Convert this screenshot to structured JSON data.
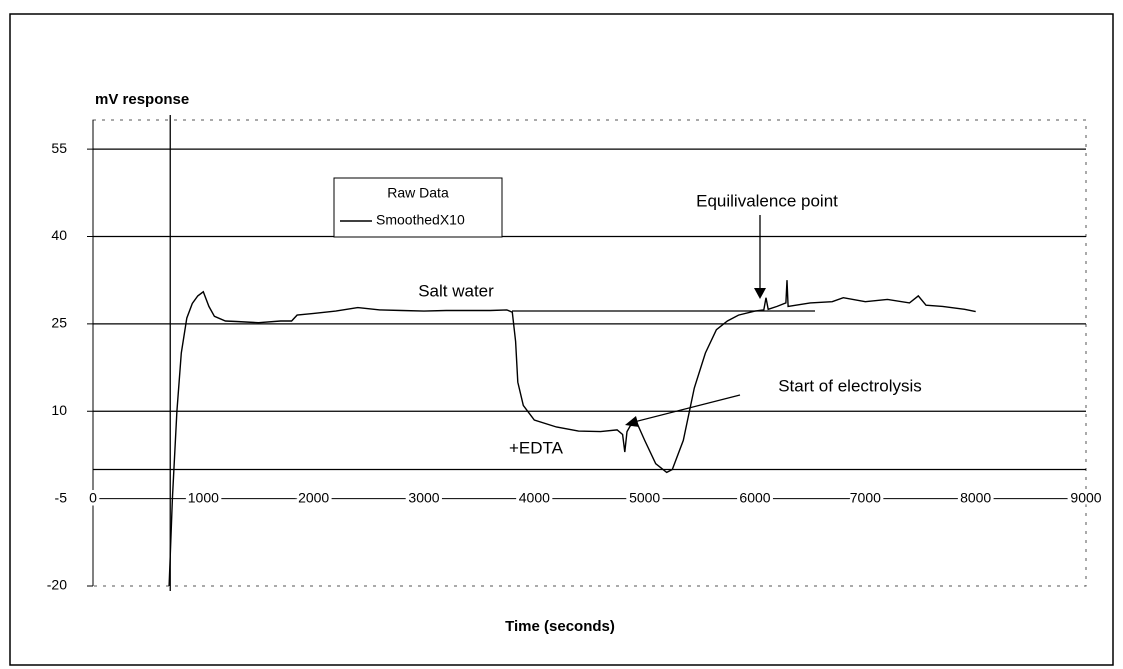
{
  "chart_data": {
    "type": "line",
    "y_label": "mV response",
    "x_label": "Time (seconds)",
    "xlim": [
      0,
      9000
    ],
    "xticks": [
      0,
      1000,
      2000,
      3000,
      4000,
      5000,
      6000,
      7000,
      8000,
      9000
    ],
    "ylim": [
      -20,
      60
    ],
    "yticks": [
      -20,
      -5,
      10,
      25,
      40,
      55
    ],
    "x_axis_at": -5,
    "grid": true,
    "ref_lines": [
      {
        "x": 700
      },
      {
        "y": 0
      }
    ],
    "annotations": [
      "Salt water",
      "Equilivalence point",
      "Start of electrolysis",
      "+EDTA"
    ],
    "x": [
      690,
      720,
      760,
      800,
      850,
      900,
      950,
      1000,
      1050,
      1100,
      1200,
      1300,
      1500,
      1700,
      1800,
      1850,
      2000,
      2200,
      2400,
      2600,
      2800,
      3000,
      3200,
      3400,
      3600,
      3750,
      3800,
      3830,
      3850,
      3900,
      4000,
      4200,
      4400,
      4600,
      4750,
      4800,
      4820,
      4840,
      4870,
      4930,
      5000,
      5100,
      5200,
      5250,
      5350,
      5450,
      5550,
      5650,
      5750,
      5850,
      6000,
      6080,
      6100,
      6120,
      6200,
      6280,
      6290,
      6300,
      6500,
      6700,
      6800,
      7000,
      7200,
      7400,
      7480,
      7550,
      7700,
      7900,
      8000
    ],
    "series": [
      {
        "name": "Raw Data",
        "color": "none"
      },
      {
        "name": "SmoothedX10",
        "color": "#000000",
        "values": [
          -20,
          -5,
          10,
          20,
          26,
          28.5,
          29.8,
          30.5,
          28,
          26.3,
          25.5,
          25.4,
          25.2,
          25.5,
          25.5,
          26.5,
          26.8,
          27.2,
          27.8,
          27.4,
          27.3,
          27.2,
          27.3,
          27.3,
          27.3,
          27.4,
          27,
          22,
          15,
          11,
          8.5,
          7.3,
          6.6,
          6.5,
          6.8,
          6,
          3,
          6.5,
          7.5,
          8,
          5,
          1,
          -0.5,
          0,
          5,
          14,
          20,
          24,
          25.5,
          26.5,
          27.2,
          27.4,
          29.5,
          27.5,
          28,
          28.6,
          32.5,
          28,
          28.6,
          28.8,
          29.5,
          28.8,
          29.2,
          28.6,
          29.8,
          28.2,
          28,
          27.5,
          27.1
        ]
      }
    ]
  }
}
